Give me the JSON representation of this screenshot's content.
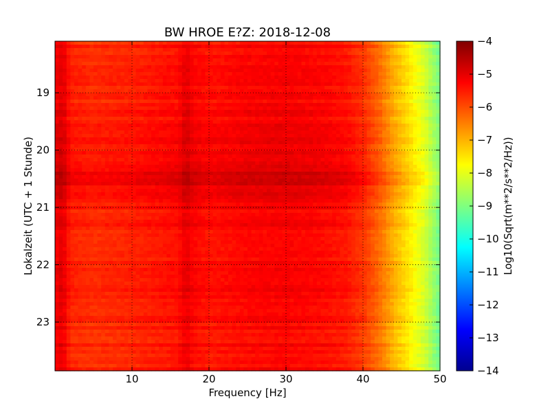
{
  "chart_data": {
    "type": "heatmap",
    "title": "BW HROE E?Z: 2018-12-08",
    "xlabel": "Frequency [Hz]",
    "ylabel": "Lokalzeit (UTC + 1 Stunde)",
    "xlim": [
      0,
      50
    ],
    "ylim": [
      23.85,
      18.1
    ],
    "x_ticks": [
      10,
      20,
      30,
      40,
      50
    ],
    "y_ticks": [
      19,
      20,
      21,
      22,
      23
    ],
    "grid": true,
    "colorbar": {
      "label": "Log10(Sqrt(m**2/s**2/Hz))",
      "range": [
        -14,
        -4
      ],
      "ticks": [
        -4,
        -5,
        -6,
        -7,
        -8,
        -9,
        -10,
        -11,
        -12,
        -13,
        -14
      ],
      "colormap": "jet"
    },
    "frequency_profile": {
      "frequency_hz": [
        0,
        1,
        2,
        5,
        10,
        16,
        17,
        18,
        20,
        25,
        30,
        35,
        38,
        40,
        42,
        44,
        46,
        48,
        50
      ],
      "log10_amplitude": [
        -5.2,
        -5.0,
        -5.6,
        -5.7,
        -5.6,
        -5.4,
        -5.05,
        -5.3,
        -5.45,
        -5.3,
        -5.25,
        -5.35,
        -5.5,
        -5.8,
        -6.3,
        -7.0,
        -7.6,
        -8.2,
        -9.2
      ]
    },
    "time_profile": {
      "time_h": [
        18.1,
        19.0,
        20.0,
        20.2,
        20.5,
        20.8,
        21.0,
        21.5,
        22.0,
        22.5,
        23.0,
        23.5,
        23.85
      ],
      "log10_amplitude_offset": [
        0.0,
        0.05,
        0.15,
        0.3,
        0.45,
        0.3,
        0.1,
        0.05,
        0.0,
        0.05,
        0.0,
        0.0,
        0.0
      ]
    }
  }
}
